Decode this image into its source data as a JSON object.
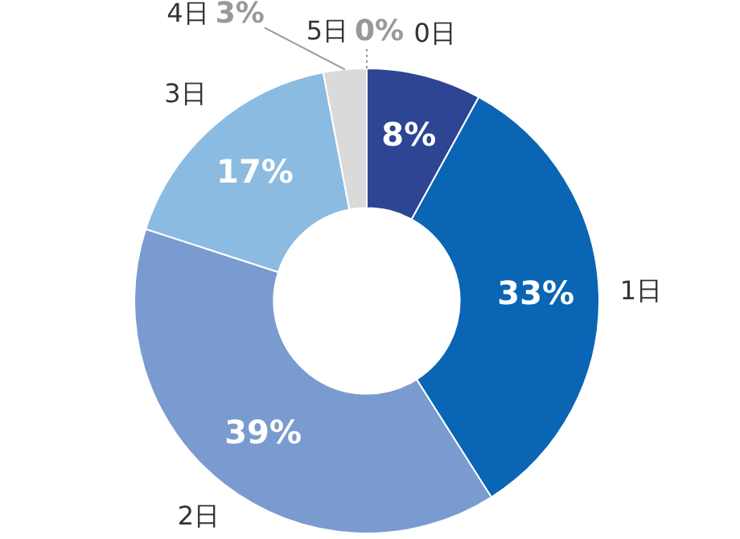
{
  "chart_data": {
    "type": "donut",
    "categories": [
      "0日",
      "1日",
      "2日",
      "3日",
      "4日",
      "5日"
    ],
    "values": [
      8,
      33,
      39,
      17,
      3,
      0
    ],
    "colors": [
      "#2d4592",
      "#0a65b4",
      "#7a9bcf",
      "#8bbbe1",
      "#dadada",
      "#dadada"
    ],
    "value_labels": [
      "8%",
      "33%",
      "39%",
      "17%",
      "3%",
      "0%"
    ]
  }
}
